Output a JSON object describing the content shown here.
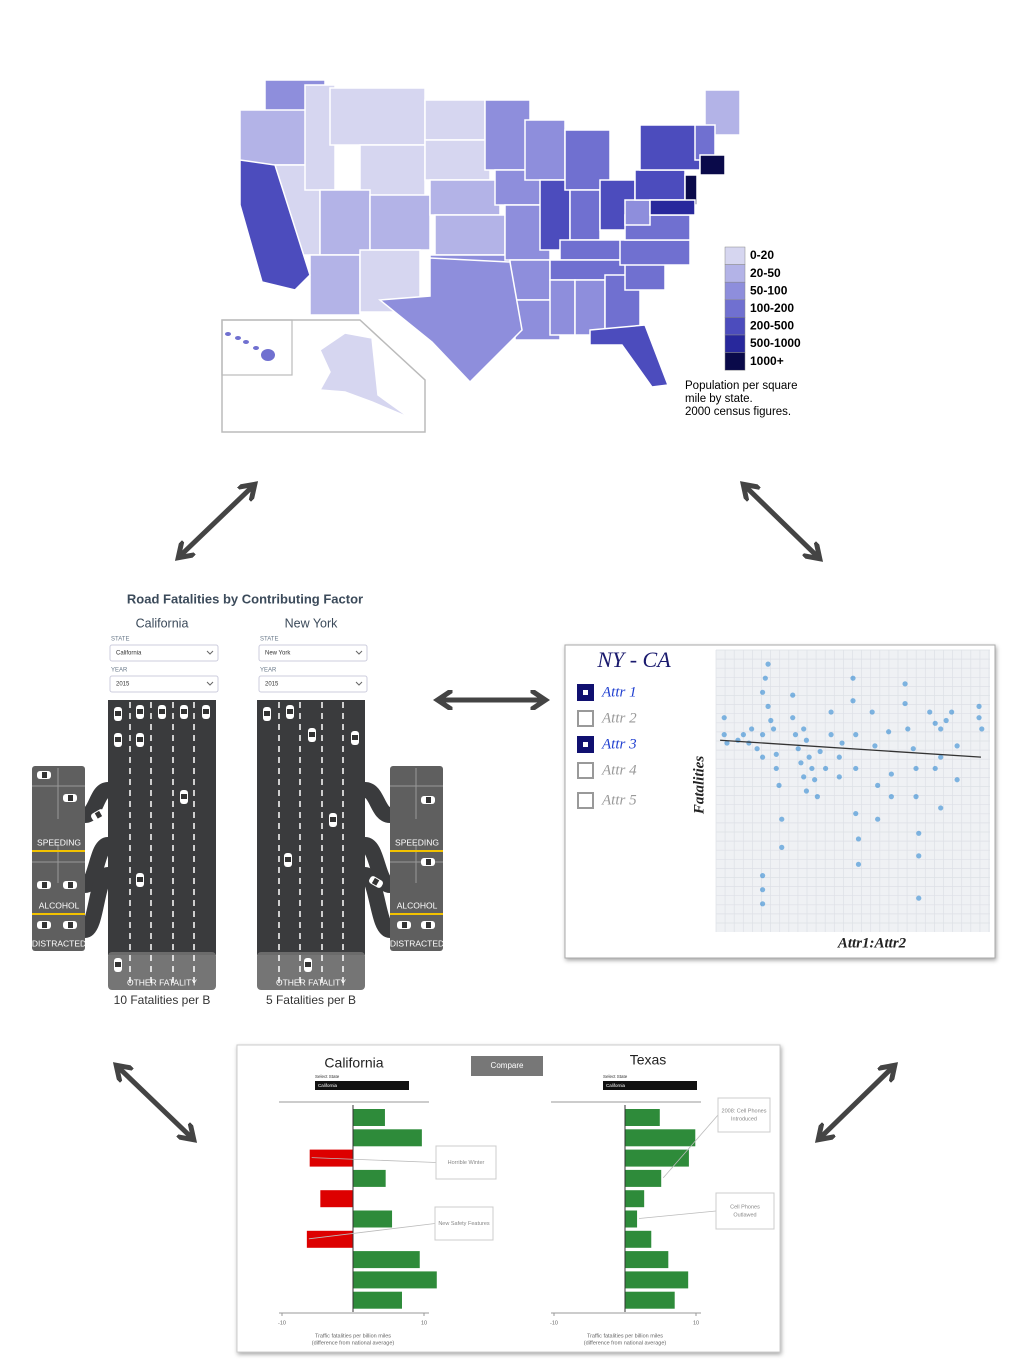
{
  "map": {
    "legend": [
      {
        "label": "0-20",
        "color": "#d6d6f0"
      },
      {
        "label": "20-50",
        "color": "#b3b3e7"
      },
      {
        "label": "50-100",
        "color": "#8e8edc"
      },
      {
        "label": "100-200",
        "color": "#7070d0"
      },
      {
        "label": "200-500",
        "color": "#4c4cbd"
      },
      {
        "label": "500-1000",
        "color": "#28289c"
      },
      {
        "label": "1000+",
        "color": "#0a0a4a"
      }
    ],
    "caption": [
      "Population per square",
      "mile by state.",
      "2000 census figures."
    ]
  },
  "road": {
    "title": "Road Fatalities by Contributing Factor",
    "panels": [
      {
        "state": "California",
        "state_label": "STATE",
        "state_value": "California",
        "year_label": "YEAR",
        "year_value": "2015",
        "lots": [
          "SPEEDING",
          "ALCOHOL",
          "DISTRACTED"
        ],
        "other": "OTHER FATALITY",
        "rate": "10 Fatalities per B"
      },
      {
        "state": "New York",
        "state_label": "STATE",
        "state_value": "New York",
        "year_label": "YEAR",
        "year_value": "2015",
        "lots": [
          "SPEEDING",
          "ALCOHOL",
          "DISTRACTED"
        ],
        "other": "OTHER FATALITY",
        "rate": "5 Fatalities per B"
      }
    ]
  },
  "scatter": {
    "title": "NY - CA",
    "attributes": [
      {
        "label": "Attr 1",
        "checked": true
      },
      {
        "label": "Attr 2",
        "checked": false
      },
      {
        "label": "Attr 3",
        "checked": true
      },
      {
        "label": "Attr 4",
        "checked": false
      },
      {
        "label": "Attr 5",
        "checked": false
      }
    ],
    "ylabel": "Fatalities",
    "xlabel": "Attr1:Attr2",
    "color": "#1f80d0",
    "xlim": [
      0,
      100
    ],
    "ylim": [
      0,
      100
    ],
    "points": {
      "x": [
        3,
        3,
        4,
        8,
        10,
        12,
        13,
        15,
        17,
        17,
        17,
        18,
        19,
        19,
        20,
        21,
        22,
        22,
        23,
        24,
        24,
        28,
        28,
        29,
        30,
        31,
        32,
        33,
        33,
        32,
        34,
        35,
        36,
        37,
        38,
        40,
        42,
        42,
        45,
        45,
        46,
        50,
        50,
        51,
        51,
        51,
        52,
        52,
        57,
        58,
        59,
        59,
        63,
        64,
        64,
        69,
        69,
        70,
        72,
        73,
        73,
        74,
        74,
        74,
        78,
        80,
        80,
        82,
        82,
        82,
        84,
        86,
        88,
        88,
        96,
        96,
        97,
        17,
        17,
        17
      ],
      "y": [
        76,
        70,
        67,
        68,
        70,
        67,
        72,
        65,
        70,
        62,
        85,
        90,
        95,
        80,
        75,
        72,
        63,
        58,
        52,
        40,
        30,
        84,
        76,
        70,
        65,
        60,
        55,
        50,
        68,
        72,
        62,
        58,
        54,
        48,
        64,
        58,
        78,
        70,
        62,
        55,
        67,
        90,
        82,
        70,
        58,
        42,
        33,
        24,
        78,
        66,
        52,
        40,
        71,
        56,
        48,
        88,
        81,
        72,
        65,
        58,
        48,
        35,
        27,
        12,
        78,
        74,
        58,
        72,
        62,
        44,
        75,
        78,
        66,
        54,
        80,
        76,
        72,
        20,
        15,
        10
      ]
    },
    "trend": {
      "x": [
        1.5,
        96.7
      ],
      "y": [
        68,
        62
      ]
    }
  },
  "bars": {
    "button": "Compare",
    "select_label": "Select State",
    "xlabel": [
      "Traffic fatalities per billion miles",
      "(difference from national average)"
    ],
    "positive_color": "#2e8b3a",
    "negative_color": "#dd0000",
    "xlim": [
      -10,
      10
    ],
    "xticks": [
      -10,
      10
    ],
    "panels": [
      {
        "title": "California",
        "selected": "California",
        "values": [
          4.5,
          9.7,
          -6.1,
          4.6,
          -4.6,
          5.5,
          -6.5,
          9.4,
          11.8,
          6.9
        ],
        "annotations": [
          {
            "lines": [
              "Horrible Winter"
            ]
          },
          {
            "lines": [
              "New Safety Features"
            ]
          }
        ]
      },
      {
        "title": "Texas",
        "selected": "California",
        "values": [
          4.9,
          9.9,
          9.0,
          5.1,
          2.7,
          1.7,
          3.7,
          6.1,
          8.9,
          7.0
        ],
        "annotations": [
          {
            "lines": [
              "2008: Cell Phones",
              "Introduced"
            ]
          },
          {
            "lines": [
              "Cell Phones",
              "Outlawed"
            ]
          }
        ]
      }
    ]
  }
}
